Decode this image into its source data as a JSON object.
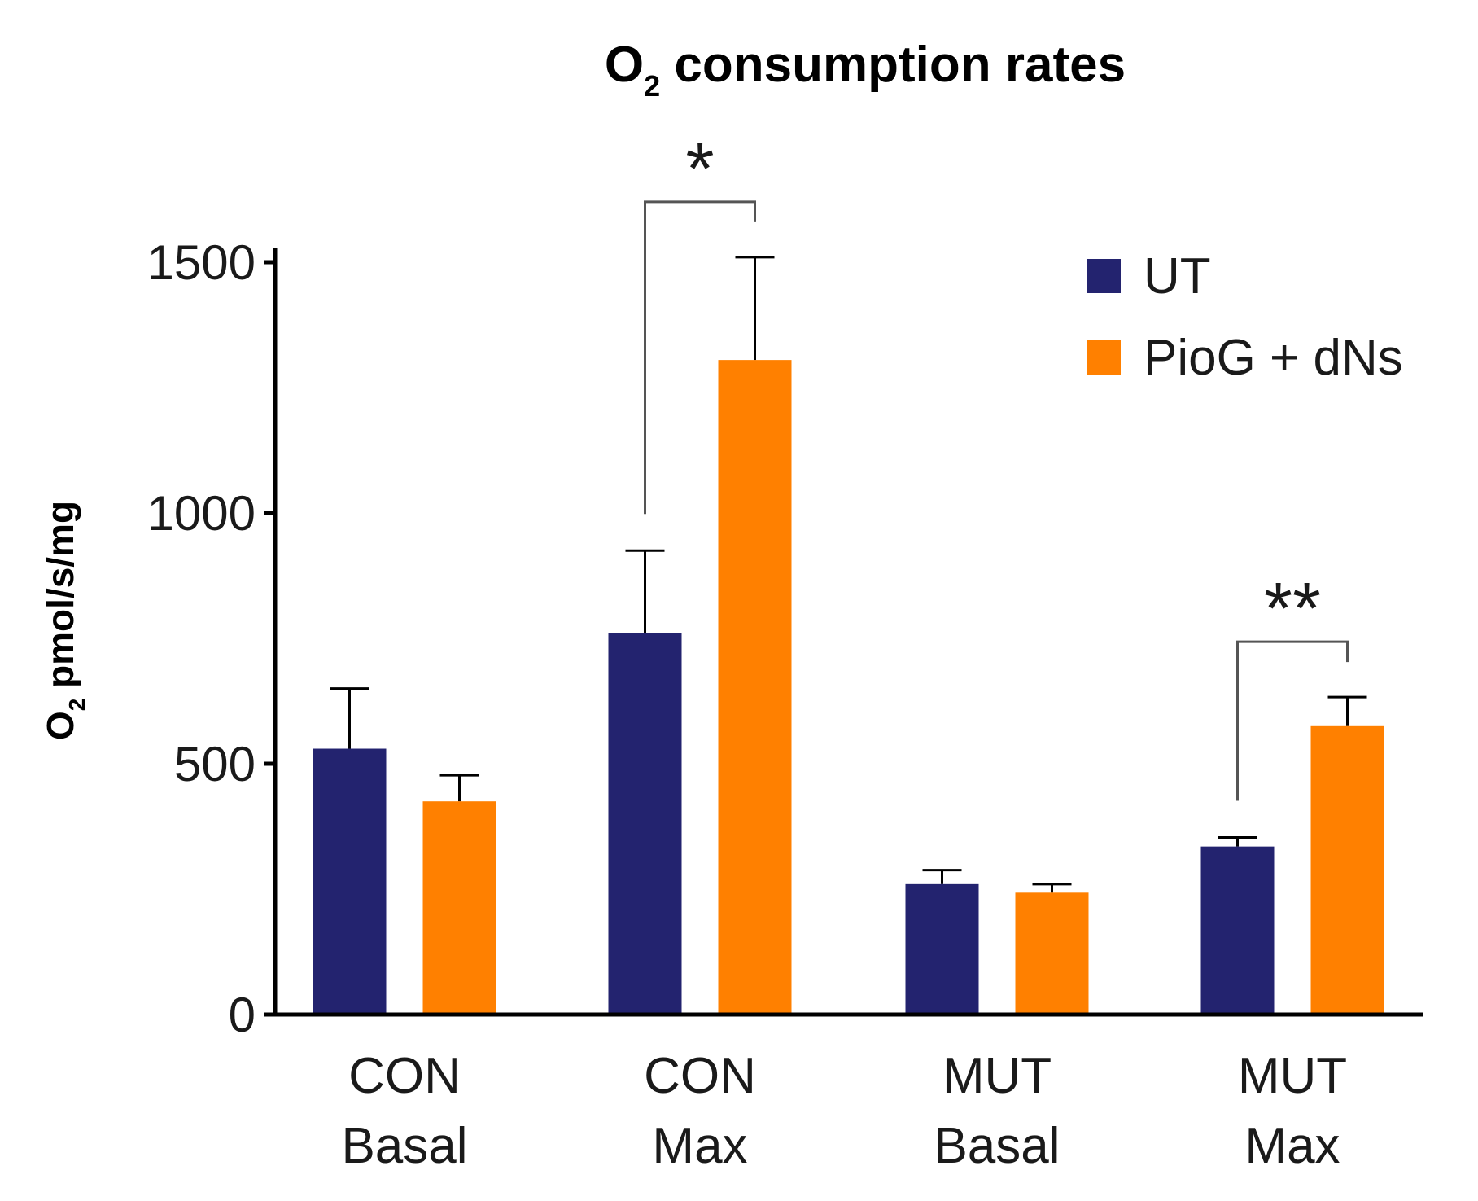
{
  "chart_data": {
    "type": "bar",
    "title": {
      "prefix": "O",
      "subscript": "2",
      "rest": " consumption rates"
    },
    "ylabel": {
      "prefix": "O",
      "subscript": "2",
      "rest": " pmol/s/mg"
    },
    "xlabel": "",
    "ylim": [
      0,
      1500
    ],
    "yticks": [
      0,
      500,
      1000,
      1500
    ],
    "ytick_labels": [
      "0",
      "500",
      "1000",
      "1500"
    ],
    "categories": [
      {
        "line1": "CON",
        "line2": "Basal"
      },
      {
        "line1": "CON",
        "line2": "Max"
      },
      {
        "line1": "MUT",
        "line2": "Basal"
      },
      {
        "line1": "MUT",
        "line2": "Max"
      }
    ],
    "series": [
      {
        "name": "UT",
        "color": "#23236f",
        "values": [
          530,
          760,
          260,
          335
        ],
        "errors": [
          120,
          165,
          28,
          18
        ]
      },
      {
        "name": "PioG + dNs",
        "color": "#ff8000",
        "values": [
          425,
          1305,
          243,
          575
        ],
        "errors": [
          52,
          205,
          17,
          58
        ]
      }
    ],
    "legend_position": "top-right",
    "significance": [
      {
        "category": 1,
        "label": "*"
      },
      {
        "category": 3,
        "label": "**"
      }
    ],
    "grid": false
  }
}
